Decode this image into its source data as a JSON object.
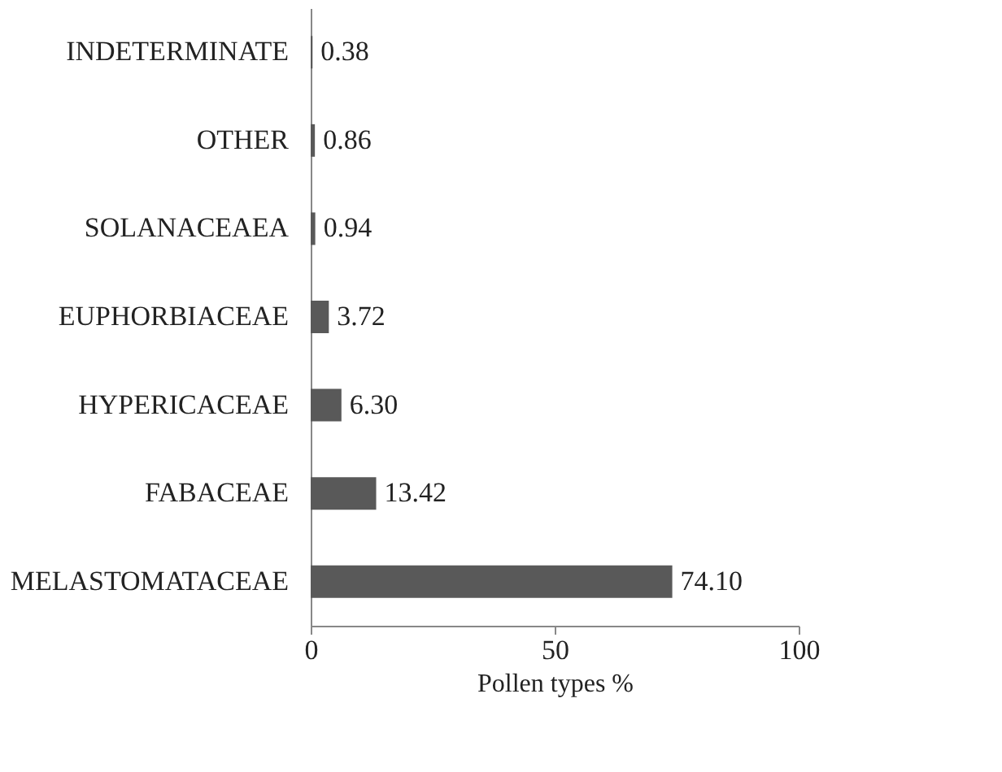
{
  "chart_data": {
    "type": "bar",
    "orientation": "horizontal",
    "xlabel": "Pollen types %",
    "categories": [
      "INDETERMINATE",
      "OTHER",
      "SOLANACEAEA",
      "EUPHORBIACEAE",
      "HYPERICACEAE",
      "FABACEAE",
      "MELASTOMATACEAE"
    ],
    "values": [
      0.38,
      0.86,
      0.94,
      3.72,
      6.3,
      13.42,
      74.1
    ],
    "value_labels": [
      "0.38",
      "0.86",
      "0.94",
      "3.72",
      "6.30",
      "13.42",
      "74.10"
    ],
    "color": "#595959",
    "xlim": [
      0,
      100
    ],
    "xticks": [
      0,
      50,
      100
    ],
    "grid": false
  }
}
